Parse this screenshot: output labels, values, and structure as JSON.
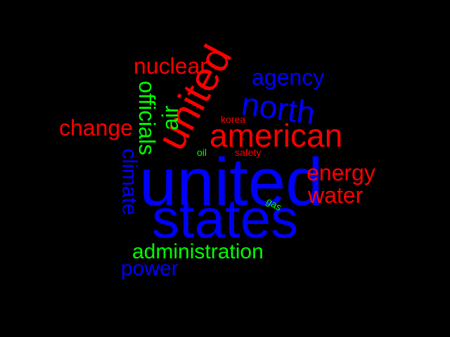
{
  "words": {
    "united_big": "united",
    "states": "states",
    "american": "american",
    "united_rotated": "united",
    "north": "north",
    "agency": "agency",
    "nuclear": "nuclear",
    "change": "change",
    "officials": "officials",
    "air": "air",
    "climate": "climate",
    "energy": "energy",
    "water": "water",
    "administration": "administration",
    "power": "power",
    "korea": "korea",
    "oil": "oil",
    "safety": "safety",
    "gas": "gas"
  },
  "colors": {
    "background": "#000000",
    "red": "#ff0000",
    "blue": "#0000ff",
    "green": "#00ff00"
  }
}
